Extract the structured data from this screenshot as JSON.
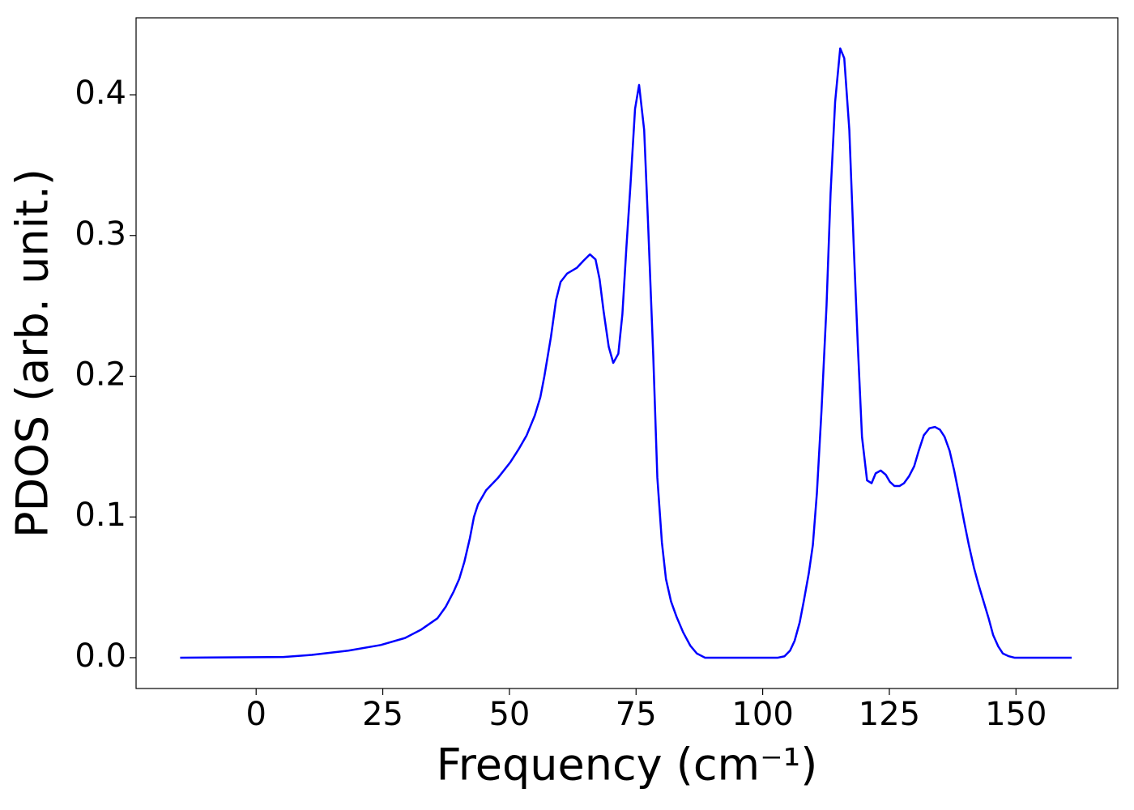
{
  "chart_data": {
    "type": "line",
    "xlabel": "Frequency (cm⁻¹)",
    "ylabel": "PDOS (arb. unit.)",
    "xlim": [
      -23.7,
      170.1
    ],
    "ylim": [
      -0.0219,
      0.4547
    ],
    "xticks": [
      0,
      25,
      50,
      75,
      100,
      125,
      150
    ],
    "yticks": [
      {
        "value": 0,
        "label": "0.0"
      },
      0.1,
      0.2,
      0.3,
      0.4
    ],
    "series": [
      {
        "color": "#0000ff",
        "x": [
          -15,
          5.4,
          11,
          18.2,
          24.6,
          29.4,
          32.6,
          35.8,
          37.4,
          39,
          40.1,
          41.1,
          42.2,
          43,
          43.8,
          45.4,
          47.8,
          50.2,
          51.8,
          53.4,
          55,
          56.1,
          56.9,
          58.2,
          59.2,
          60.1,
          61.4,
          63.3,
          64.6,
          65.9,
          67,
          67.8,
          68.6,
          69.6,
          70.5,
          71.5,
          72.3,
          73.1,
          73.9,
          74.8,
          75.6,
          76.6,
          77.4,
          78.4,
          79.2,
          80.1,
          80.9,
          81.9,
          83,
          84.3,
          85.7,
          87,
          88.6,
          103,
          104.3,
          105.4,
          106.3,
          107.3,
          108.1,
          109.1,
          109.9,
          110.7,
          111.6,
          112.6,
          113.4,
          114.3,
          115.3,
          116.1,
          117.1,
          118,
          118.8,
          119.6,
          120.6,
          121.5,
          122.3,
          123.3,
          124.3,
          125.1,
          126,
          127,
          127.9,
          128.9,
          129.9,
          130.8,
          131.8,
          132.9,
          134,
          135,
          135.9,
          136.9,
          137.8,
          138.8,
          139.8,
          140.7,
          141.7,
          142.6,
          143.6,
          144.6,
          145.5,
          146.5,
          147.4,
          148.6,
          149.7,
          161
        ],
        "values": [
          0,
          0.0005,
          0.002,
          0.005,
          0.009,
          0.014,
          0.02,
          0.028,
          0.036,
          0.047,
          0.056,
          0.068,
          0.085,
          0.1,
          0.109,
          0.119,
          0.128,
          0.139,
          0.148,
          0.158,
          0.172,
          0.185,
          0.2,
          0.228,
          0.254,
          0.267,
          0.273,
          0.277,
          0.282,
          0.2866,
          0.283,
          0.269,
          0.246,
          0.221,
          0.2095,
          0.216,
          0.244,
          0.292,
          0.336,
          0.39,
          0.407,
          0.375,
          0.306,
          0.214,
          0.128,
          0.082,
          0.056,
          0.04,
          0.029,
          0.018,
          0.0086,
          0.003,
          0,
          0,
          0.001,
          0.005,
          0.012,
          0.025,
          0.04,
          0.06,
          0.08,
          0.117,
          0.175,
          0.25,
          0.33,
          0.395,
          0.433,
          0.426,
          0.375,
          0.29,
          0.22,
          0.157,
          0.126,
          0.124,
          0.131,
          0.133,
          0.13,
          0.125,
          0.122,
          0.122,
          0.124,
          0.129,
          0.136,
          0.147,
          0.158,
          0.163,
          0.164,
          0.162,
          0.157,
          0.147,
          0.133,
          0.115,
          0.096,
          0.08,
          0.064,
          0.052,
          0.04,
          0.028,
          0.016,
          0.008,
          0.003,
          0.001,
          0,
          0
        ]
      }
    ]
  }
}
